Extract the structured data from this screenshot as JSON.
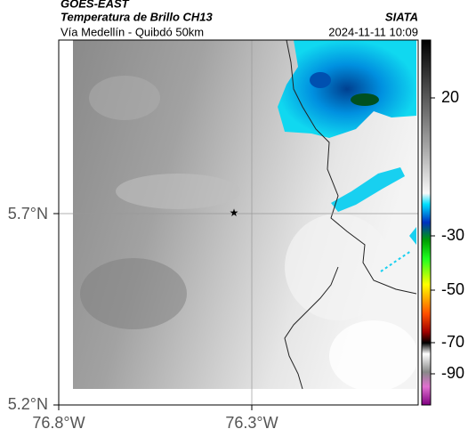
{
  "header": {
    "title": "GOES-EAST",
    "subtitle": "Temperatura de Brillo CH13",
    "region": "Vía Medellín - Quibdó 50km",
    "source": "SIATA",
    "datetime": "2024-11-11 10:09"
  },
  "map": {
    "lat_labels": [
      "5.7°N",
      "5.2°N"
    ],
    "lon_labels": [
      "76.8°W",
      "76.3°W"
    ],
    "colorbar": {
      "ticks": [
        20,
        -30,
        -50,
        -70,
        -90
      ]
    }
  }
}
